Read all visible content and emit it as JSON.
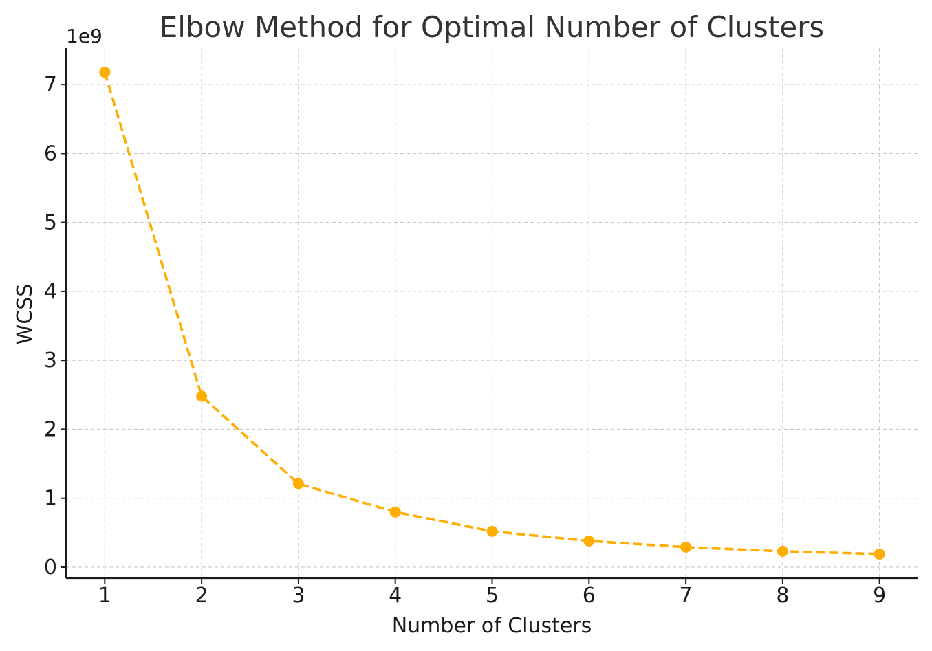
{
  "chart_data": {
    "type": "line",
    "title": "Elbow Method for Optimal Number of Clusters",
    "xlabel": "Number of Clusters",
    "ylabel": "WCSS",
    "y_offset_label": "1e9",
    "x": [
      1,
      2,
      3,
      4,
      5,
      6,
      7,
      8,
      9
    ],
    "y": [
      7180000000,
      2480000000,
      1210000000,
      800000000,
      520000000,
      380000000,
      290000000,
      230000000,
      190000000
    ],
    "xticks": [
      1,
      2,
      3,
      4,
      5,
      6,
      7,
      8,
      9
    ],
    "xtick_labels": [
      "1",
      "2",
      "3",
      "4",
      "5",
      "6",
      "7",
      "8",
      "9"
    ],
    "yticks": [
      0,
      1000000000,
      2000000000,
      3000000000,
      4000000000,
      5000000000,
      6000000000,
      7000000000
    ],
    "ytick_labels": [
      "0",
      "1",
      "2",
      "3",
      "4",
      "5",
      "6",
      "7"
    ],
    "xlim": [
      0.6,
      9.4
    ],
    "ylim": [
      -160000000,
      7530000000
    ],
    "grid": true,
    "line_style": "dashed",
    "marker": "circle",
    "color": "#ffad00"
  }
}
